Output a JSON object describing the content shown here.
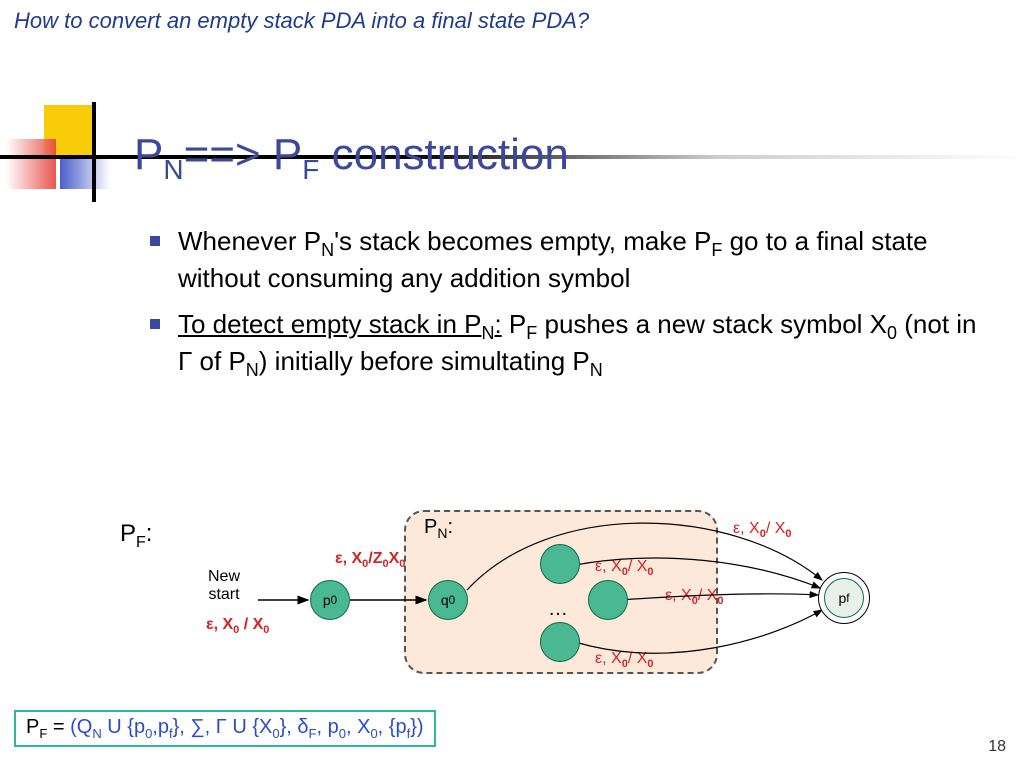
{
  "top_question": "How to convert an empty stack PDA into a final state PDA?",
  "title_html": "P<sub>N</sub>==> P<sub>F</sub> construction",
  "bullets": [
    "Whenever P<sub>N</sub>'s stack becomes empty, make P<sub>F</sub> go to a final state without consuming any addition symbol",
    "<span style='text-decoration:underline'>To detect empty stack in P<sub>N</sub>:</span> P<sub>F</sub> pushes a new stack symbol X<sub>0</sub> (not in Γ of P<sub>N</sub>) initially before simultating P<sub>N</sub>"
  ],
  "diagram": {
    "pf_label": "P<sub>F</sub>:",
    "pn_label": "P<sub>N</sub>:",
    "new_start": "New<br>start",
    "epsilon_x0_x0": "ε, X<sub>0</sub> / X<sub>0</sub>",
    "epsilon_x0z0": "ε, X<sub>0</sub>/Z<sub>0</sub>X<sub>0</sub>",
    "epsilon_x0x0_thin": "ε, X<sub>0</sub>/ X<sub>0</sub>",
    "states": {
      "p0": "p<sub>0</sub>",
      "q0": "q<sub>0</sub>",
      "pf": "p<sub>f</sub>"
    },
    "dots": "…",
    "state_fill": "#4bb894",
    "state_border": "#0c6b49",
    "pn_box_fill": "#fde9d9",
    "red": "#d2232a"
  },
  "formula_html": "P<sub>F</sub> = <span class='blue'>(Q<sub>N</sub> U {p<sub>0</sub>,p<sub>f</sub>}, ∑, Γ U {X<sub>0</sub>}, δ<sub>F</sub>, p<sub>0</sub>, X<sub>0</sub>, {p<sub>f</sub>})</span>",
  "page_number": "18",
  "logo": {
    "yellow": "#f9cc0a",
    "red": "#e6433b",
    "blue": "#4a5fca"
  }
}
